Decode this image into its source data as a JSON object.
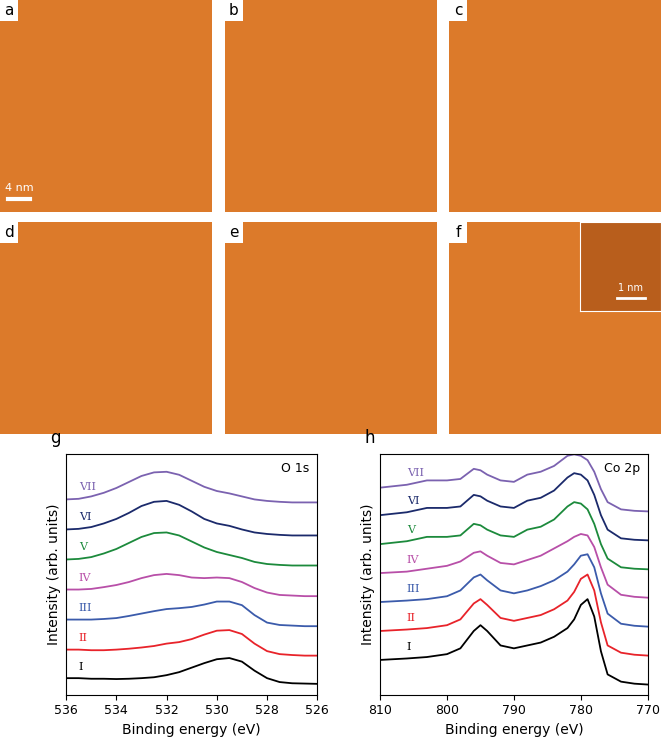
{
  "images": [
    {
      "panel_label": "a",
      "scale_bar": "4 nm"
    },
    {
      "panel_label": "b"
    },
    {
      "panel_label": "c"
    },
    {
      "panel_label": "d"
    },
    {
      "panel_label": "e"
    },
    {
      "panel_label": "f",
      "inset_scale_bar": "1 nm"
    }
  ],
  "chart_data": [
    {
      "type": "line",
      "panel_label": "g",
      "annotation": "O 1s",
      "x_label": "Binding energy (eV)",
      "y_label": "Intensity (arb. units)",
      "xlim": [
        536,
        526
      ],
      "xticks": [
        536,
        534,
        532,
        530,
        528,
        526
      ],
      "ylim": [
        -0.2,
        7.8
      ],
      "tick_labels": "x",
      "x": [
        536,
        535.5,
        535,
        534.5,
        534,
        533.5,
        533,
        532.5,
        532,
        531.5,
        531,
        530.5,
        530,
        529.5,
        529,
        528.5,
        528,
        527.5,
        527,
        526.5,
        526
      ],
      "series": [
        {
          "name": "I",
          "color": "#000000",
          "values": [
            0.35,
            0.35,
            0.33,
            0.33,
            0.32,
            0.33,
            0.35,
            0.38,
            0.45,
            0.55,
            0.7,
            0.85,
            0.98,
            1.02,
            0.9,
            0.6,
            0.35,
            0.22,
            0.18,
            0.17,
            0.16
          ]
        },
        {
          "name": "II",
          "color": "#e8232a",
          "values": [
            1.3,
            1.3,
            1.28,
            1.28,
            1.3,
            1.33,
            1.37,
            1.42,
            1.5,
            1.55,
            1.65,
            1.8,
            1.93,
            1.95,
            1.82,
            1.5,
            1.25,
            1.15,
            1.12,
            1.1,
            1.1
          ]
        },
        {
          "name": "III",
          "color": "#3b5bab",
          "values": [
            2.3,
            2.3,
            2.3,
            2.32,
            2.35,
            2.42,
            2.5,
            2.58,
            2.65,
            2.68,
            2.72,
            2.8,
            2.9,
            2.9,
            2.78,
            2.45,
            2.2,
            2.12,
            2.1,
            2.08,
            2.08
          ]
        },
        {
          "name": "IV",
          "color": "#b84fa8",
          "values": [
            3.3,
            3.3,
            3.32,
            3.38,
            3.45,
            3.55,
            3.68,
            3.78,
            3.82,
            3.78,
            3.7,
            3.68,
            3.7,
            3.68,
            3.55,
            3.35,
            3.2,
            3.12,
            3.1,
            3.08,
            3.08
          ]
        },
        {
          "name": "V",
          "color": "#1c8a3c",
          "values": [
            4.3,
            4.32,
            4.38,
            4.5,
            4.65,
            4.85,
            5.05,
            5.18,
            5.2,
            5.1,
            4.9,
            4.7,
            4.55,
            4.45,
            4.35,
            4.22,
            4.15,
            4.12,
            4.1,
            4.1,
            4.1
          ]
        },
        {
          "name": "VI",
          "color": "#1b2a6b",
          "values": [
            5.3,
            5.32,
            5.38,
            5.5,
            5.65,
            5.85,
            6.08,
            6.22,
            6.25,
            6.12,
            5.9,
            5.65,
            5.5,
            5.42,
            5.3,
            5.2,
            5.15,
            5.12,
            5.1,
            5.1,
            5.1
          ]
        },
        {
          "name": "VII",
          "color": "#7b62b0",
          "values": [
            6.3,
            6.32,
            6.4,
            6.52,
            6.68,
            6.88,
            7.08,
            7.2,
            7.22,
            7.12,
            6.92,
            6.72,
            6.58,
            6.5,
            6.4,
            6.3,
            6.25,
            6.22,
            6.2,
            6.2,
            6.2
          ]
        }
      ]
    },
    {
      "type": "line",
      "panel_label": "h",
      "annotation": "Co 2p",
      "x_label": "Binding energy (eV)",
      "y_label": "Intensity (arb. units)",
      "xlim": [
        810,
        770
      ],
      "xticks": [
        810,
        800,
        790,
        780,
        770
      ],
      "ylim": [
        -0.3,
        8.0
      ],
      "tick_labels": "x",
      "x": [
        810,
        806,
        803,
        800,
        798,
        796,
        795,
        794,
        792,
        790,
        788,
        786,
        784,
        782,
        781,
        780,
        779,
        778,
        777,
        776,
        774,
        772,
        770
      ],
      "series": [
        {
          "name": "I",
          "color": "#000000",
          "values": [
            0.9,
            0.95,
            1.0,
            1.1,
            1.3,
            1.9,
            2.1,
            1.9,
            1.4,
            1.3,
            1.4,
            1.5,
            1.7,
            2.0,
            2.3,
            2.8,
            3.0,
            2.4,
            1.2,
            0.4,
            0.15,
            0.08,
            0.05
          ]
        },
        {
          "name": "II",
          "color": "#e8232a",
          "values": [
            1.9,
            1.95,
            2.0,
            2.1,
            2.3,
            2.85,
            3.0,
            2.8,
            2.35,
            2.25,
            2.35,
            2.45,
            2.65,
            2.95,
            3.25,
            3.7,
            3.85,
            3.3,
            2.2,
            1.4,
            1.15,
            1.08,
            1.05
          ]
        },
        {
          "name": "III",
          "color": "#3b5bab",
          "values": [
            2.9,
            2.95,
            3.0,
            3.1,
            3.3,
            3.75,
            3.85,
            3.65,
            3.3,
            3.2,
            3.3,
            3.45,
            3.65,
            3.95,
            4.2,
            4.5,
            4.55,
            4.1,
            3.2,
            2.5,
            2.15,
            2.08,
            2.05
          ]
        },
        {
          "name": "IV",
          "color": "#b84fa8",
          "values": [
            3.9,
            3.95,
            4.05,
            4.15,
            4.3,
            4.6,
            4.65,
            4.5,
            4.25,
            4.2,
            4.35,
            4.5,
            4.75,
            5.0,
            5.15,
            5.25,
            5.2,
            4.8,
            4.1,
            3.5,
            3.15,
            3.08,
            3.05
          ]
        },
        {
          "name": "V",
          "color": "#1c8a3c",
          "values": [
            4.9,
            5.0,
            5.15,
            5.15,
            5.2,
            5.6,
            5.55,
            5.4,
            5.2,
            5.15,
            5.4,
            5.5,
            5.75,
            6.2,
            6.35,
            6.3,
            6.1,
            5.6,
            4.9,
            4.4,
            4.1,
            4.05,
            4.03
          ]
        },
        {
          "name": "VI",
          "color": "#1b2a6b",
          "values": [
            5.9,
            6.0,
            6.15,
            6.15,
            6.2,
            6.6,
            6.55,
            6.4,
            6.2,
            6.15,
            6.4,
            6.5,
            6.75,
            7.2,
            7.35,
            7.3,
            7.1,
            6.6,
            5.9,
            5.4,
            5.1,
            5.05,
            5.03
          ]
        },
        {
          "name": "VII",
          "color": "#7b62b0",
          "values": [
            6.85,
            6.95,
            7.1,
            7.1,
            7.15,
            7.5,
            7.45,
            7.3,
            7.1,
            7.05,
            7.3,
            7.4,
            7.6,
            7.95,
            8.0,
            7.95,
            7.8,
            7.4,
            6.8,
            6.35,
            6.1,
            6.05,
            6.03
          ]
        }
      ]
    }
  ]
}
